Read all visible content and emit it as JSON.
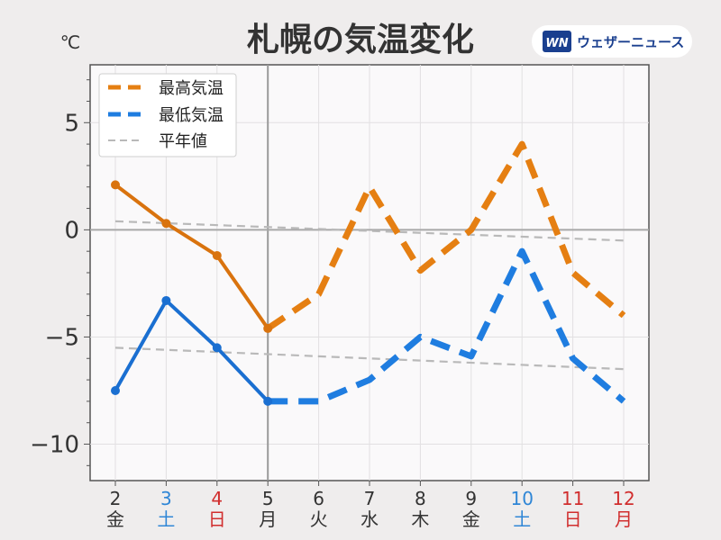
{
  "chart_data": {
    "type": "line",
    "title": "札幌の気温変化",
    "unit": "℃",
    "ylim": [
      -11.7,
      7.7
    ],
    "yticks": [
      5,
      0,
      -5,
      -10
    ],
    "ytick_labels": [
      "5",
      "0",
      "−5",
      "−10"
    ],
    "categories": [
      {
        "day": "2",
        "weekday": "金",
        "color": "#333333"
      },
      {
        "day": "3",
        "weekday": "土",
        "color": "#2f86d6"
      },
      {
        "day": "4",
        "weekday": "日",
        "color": "#d12e2e"
      },
      {
        "day": "5",
        "weekday": "月",
        "color": "#333333"
      },
      {
        "day": "6",
        "weekday": "火",
        "color": "#333333"
      },
      {
        "day": "7",
        "weekday": "水",
        "color": "#333333"
      },
      {
        "day": "8",
        "weekday": "木",
        "color": "#333333"
      },
      {
        "day": "9",
        "weekday": "金",
        "color": "#333333"
      },
      {
        "day": "10",
        "weekday": "土",
        "color": "#2f86d6"
      },
      {
        "day": "11",
        "weekday": "日",
        "color": "#d12e2e"
      },
      {
        "day": "12",
        "weekday": "月",
        "color": "#d12e2e"
      }
    ],
    "today_index": 3,
    "series": [
      {
        "name": "最高気温",
        "color": "#e57f12",
        "values": [
          2.1,
          0.3,
          -1.2,
          -4.6,
          -3.0,
          2.0,
          -1.9,
          0.0,
          4.0,
          -2.0,
          -4.0
        ]
      },
      {
        "name": "最低気温",
        "color": "#1f7de0",
        "values": [
          -7.5,
          -3.3,
          -5.5,
          -8.0,
          -8.0,
          -7.0,
          -5.0,
          -5.9,
          -1.0,
          -6.0,
          -8.0
        ]
      },
      {
        "name": "平年値",
        "color": "#b9b9b9",
        "normal_high": [
          0.4,
          -0.5
        ],
        "normal_low": [
          -5.5,
          -6.5
        ]
      }
    ],
    "grid": true,
    "legend": "top-left"
  },
  "branding": {
    "logo_mark": "WN",
    "logo_text": "ウェザーニュース"
  }
}
